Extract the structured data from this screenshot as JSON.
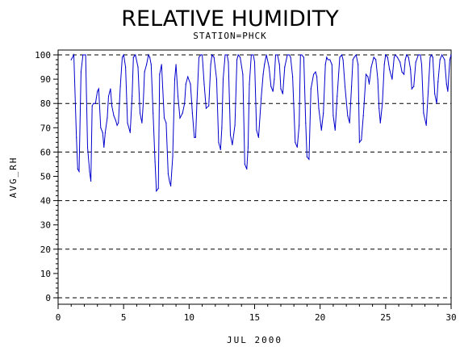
{
  "chart_data": {
    "type": "line",
    "title": "RELATIVE HUMIDITY",
    "subtitle": "STATION=PHCK",
    "xlabel": "JUL 2000",
    "ylabel": "AVG_RH",
    "xlim": [
      0,
      30
    ],
    "ylim": [
      0,
      100
    ],
    "x_ticks": [
      0,
      5,
      10,
      15,
      20,
      25,
      30
    ],
    "y_ticks": [
      0,
      10,
      20,
      30,
      40,
      50,
      60,
      70,
      80,
      90,
      100
    ],
    "dashed_gridlines_y": [
      0,
      20,
      40,
      60,
      80,
      100
    ],
    "line_color": "#0000cc",
    "series": [
      {
        "x": [
          1.0,
          1.2,
          1.4,
          1.5,
          1.6,
          1.75,
          1.9,
          2.1,
          2.25,
          2.4,
          2.5,
          2.6,
          2.7,
          2.85,
          3.0,
          3.1,
          3.25,
          3.4,
          3.5,
          3.6,
          3.75,
          3.85,
          4.0,
          4.1,
          4.25,
          4.4,
          4.5,
          4.6,
          4.75,
          4.9,
          5.0,
          5.15,
          5.3,
          5.5,
          5.65,
          5.75,
          5.9,
          6.1,
          6.25,
          6.4,
          6.5,
          6.6,
          6.75,
          6.9,
          7.0,
          7.1,
          7.25,
          7.4,
          7.5,
          7.65,
          7.75,
          7.9,
          8.1,
          8.25,
          8.4,
          8.5,
          8.6,
          8.75,
          8.9,
          9.0,
          9.15,
          9.3,
          9.5,
          9.65,
          9.75,
          9.9,
          10.1,
          10.25,
          10.4,
          10.5,
          10.6,
          10.75,
          10.9,
          11.0,
          11.15,
          11.3,
          11.5,
          11.65,
          11.75,
          11.9,
          12.1,
          12.25,
          12.4,
          12.5,
          12.6,
          12.75,
          12.9,
          13.0,
          13.15,
          13.3,
          13.5,
          13.65,
          13.75,
          13.9,
          14.1,
          14.25,
          14.4,
          14.5,
          14.6,
          14.75,
          14.9,
          15.0,
          15.15,
          15.3,
          15.5,
          15.65,
          15.75,
          15.9,
          16.1,
          16.25,
          16.4,
          16.5,
          16.6,
          16.75,
          16.9,
          17.0,
          17.15,
          17.3,
          17.5,
          17.65,
          17.75,
          17.9,
          18.1,
          18.25,
          18.4,
          18.5,
          18.6,
          18.75,
          18.9,
          19.0,
          19.15,
          19.3,
          19.5,
          19.65,
          19.75,
          19.9,
          20.1,
          20.25,
          20.4,
          20.5,
          20.6,
          20.75,
          20.9,
          21.0,
          21.15,
          21.3,
          21.5,
          21.65,
          21.75,
          21.9,
          22.1,
          22.25,
          22.4,
          22.5,
          22.6,
          22.75,
          22.9,
          23.0,
          23.15,
          23.3,
          23.5,
          23.65,
          23.75,
          23.9,
          24.1,
          24.25,
          24.4,
          24.5,
          24.6,
          24.75,
          24.9,
          25.0,
          25.15,
          25.3,
          25.5,
          25.65,
          25.75,
          25.9,
          26.1,
          26.25,
          26.4,
          26.5,
          26.6,
          26.75,
          26.9,
          27.0,
          27.15,
          27.3,
          27.5,
          27.65,
          27.75,
          27.9,
          28.1,
          28.25,
          28.4,
          28.5,
          28.6,
          28.75,
          28.9,
          29.0,
          29.15,
          29.3,
          29.5,
          29.65,
          29.75,
          29.9,
          30.0
        ],
        "values": [
          98,
          100,
          66,
          53,
          52,
          93,
          100,
          100,
          62,
          52,
          48,
          79,
          80,
          80,
          85,
          86,
          70,
          68,
          62,
          68,
          74,
          83,
          86,
          79,
          75,
          73,
          71,
          72,
          87,
          99,
          100,
          95,
          72,
          68,
          83,
          99,
          100,
          95,
          76,
          72,
          80,
          93,
          96,
          100,
          99,
          96,
          76,
          56,
          44,
          45,
          92,
          96,
          74,
          72,
          51,
          48,
          46,
          58,
          90,
          96,
          83,
          74,
          76,
          80,
          88,
          91,
          88,
          76,
          66,
          66,
          81,
          99,
          100,
          100,
          88,
          78,
          79,
          96,
          100,
          99,
          90,
          64,
          61,
          70,
          90,
          100,
          100,
          97,
          67,
          63,
          71,
          98,
          100,
          99,
          92,
          55,
          53,
          62,
          88,
          100,
          100,
          97,
          69,
          66,
          82,
          92,
          96,
          100,
          95,
          87,
          85,
          90,
          100,
          100,
          96,
          86,
          84,
          95,
          100,
          100,
          99,
          91,
          64,
          62,
          71,
          100,
          100,
          99,
          72,
          58,
          57,
          86,
          92,
          93,
          91,
          78,
          69,
          76,
          96,
          99,
          98,
          98,
          96,
          75,
          69,
          83,
          99,
          100,
          98,
          87,
          75,
          72,
          87,
          98,
          99,
          100,
          96,
          64,
          65,
          75,
          92,
          91,
          88,
          95,
          99,
          98,
          90,
          78,
          72,
          80,
          96,
          100,
          99,
          94,
          90,
          99,
          100,
          99,
          97,
          93,
          92,
          98,
          100,
          99,
          94,
          86,
          87,
          97,
          100,
          100,
          96,
          76,
          71,
          85,
          99,
          100,
          99,
          84,
          80,
          89,
          98,
          100,
          98,
          88,
          85,
          98,
          100
        ]
      }
    ]
  }
}
